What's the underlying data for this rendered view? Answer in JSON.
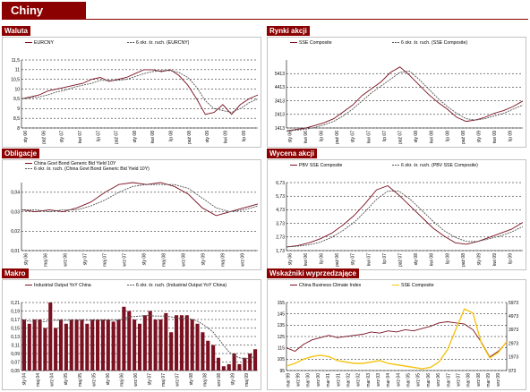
{
  "page": {
    "title": "Chiny",
    "accent": "#8b0000",
    "series_colors": {
      "primary": "#7a1020",
      "ma": "#555555",
      "secondary": "#f5c518"
    }
  },
  "chart_data": [
    {
      "id": "waluta",
      "type": "line",
      "title": "Waluta",
      "legend": [
        "EURCNY",
        "6 okr. śr. ruch. (EURCNY)"
      ],
      "ylim": [
        8,
        11.5
      ],
      "yticks": [
        "11,5",
        "11",
        "10,5",
        "10",
        "9,5",
        "9",
        "8,5",
        "8"
      ],
      "xticks": [
        "sty 06",
        "paź 06",
        "sty 07",
        "kwi 07",
        "lip 07",
        "paź 07",
        "sty 08",
        "kwi 08",
        "lip 08",
        "paź 08",
        "sty 09",
        "kwi 09",
        "lip 09"
      ],
      "series": [
        {
          "name": "EURCNY",
          "values": [
            9.5,
            9.6,
            9.7,
            9.9,
            10.0,
            10.1,
            10.2,
            10.3,
            10.5,
            10.6,
            10.4,
            10.5,
            10.6,
            10.8,
            11.0,
            11.0,
            10.9,
            11.0,
            10.7,
            10.2,
            9.5,
            8.7,
            8.8,
            9.2,
            8.7,
            9.2,
            9.5,
            9.7
          ]
        },
        {
          "name": "6 okr. śr. ruch. (EURCNY)",
          "values": [
            9.5,
            9.55,
            9.6,
            9.7,
            9.85,
            9.95,
            10.1,
            10.2,
            10.3,
            10.45,
            10.45,
            10.45,
            10.5,
            10.65,
            10.8,
            10.9,
            10.95,
            10.95,
            10.85,
            10.6,
            10.1,
            9.4,
            9.0,
            8.9,
            8.8,
            9.0,
            9.3,
            9.5
          ]
        }
      ]
    },
    {
      "id": "rynki-akcji",
      "type": "line",
      "title": "Rynki akcji",
      "legend": [
        "SSE Composite",
        "6 okr. śr. ruch. (SSE Composite)"
      ],
      "ylim": [
        1413,
        6413
      ],
      "yticks": [
        "5413",
        "4413",
        "3413",
        "2413",
        "1413"
      ],
      "xticks": [
        "sty 06",
        "kwi 06",
        "lip 06",
        "paź 06",
        "sty 07",
        "kwi 07",
        "lip 07",
        "paź 07",
        "sty 08",
        "kwi 08",
        "lip 08",
        "paź 08",
        "sty 09",
        "kwi 09",
        "lip 09"
      ],
      "series": [
        {
          "name": "SSE Composite",
          "values": [
            1200,
            1300,
            1400,
            1600,
            1800,
            2100,
            2600,
            3100,
            3800,
            4300,
            4800,
            5500,
            5900,
            5300,
            4600,
            3900,
            3300,
            2800,
            2200,
            1900,
            2000,
            2200,
            2500,
            2700,
            3000,
            3400
          ]
        },
        {
          "name": "6 okr. śr. ruch. (SSE Composite)",
          "values": [
            1200,
            1250,
            1320,
            1450,
            1650,
            1900,
            2300,
            2800,
            3400,
            4000,
            4500,
            5000,
            5500,
            5600,
            5000,
            4300,
            3600,
            3000,
            2500,
            2100,
            2000,
            2100,
            2300,
            2500,
            2800,
            3100
          ]
        }
      ]
    },
    {
      "id": "obligacje",
      "type": "line",
      "title": "Obligacje",
      "legend": [
        "China Govt Bond Generic Bid Yield 10Y",
        "6 okr. śr. ruch. (China Govt Bond Generic Bid Yield 10Y)"
      ],
      "ylim": [
        0.01,
        0.045
      ],
      "yticks": [
        "0,04",
        "0,03",
        "0,02",
        "0,01"
      ],
      "xticks": [
        "sty 06",
        "maj 06",
        "wrz 06",
        "sty 07",
        "maj 07",
        "wrz 07",
        "sty 08",
        "maj 08",
        "wrz 08",
        "sty 09",
        "maj 09",
        "wrz 09"
      ],
      "series": [
        {
          "name": "China Govt Bond Generic Bid Yield 10Y",
          "values": [
            0.031,
            0.03,
            0.031,
            0.03,
            0.032,
            0.035,
            0.04,
            0.044,
            0.045,
            0.044,
            0.045,
            0.043,
            0.039,
            0.032,
            0.028,
            0.03,
            0.032,
            0.034
          ]
        },
        {
          "name": "6 okr. śr. ruch. (China Govt Bond Generic Bid Yield 10Y)",
          "values": [
            0.031,
            0.031,
            0.03,
            0.031,
            0.031,
            0.033,
            0.036,
            0.04,
            0.043,
            0.044,
            0.044,
            0.044,
            0.042,
            0.037,
            0.032,
            0.03,
            0.031,
            0.033
          ]
        }
      ]
    },
    {
      "id": "wycena-akcji",
      "type": "line",
      "title": "Wycena akcji",
      "legend": [
        "PBV SSE Composite",
        "6 okr. śr. ruch. (PBV SSE Composite)"
      ],
      "ylim": [
        1.73,
        6.73
      ],
      "yticks": [
        "6,73",
        "5,73",
        "4,73",
        "3,73",
        "2,73",
        "1,73"
      ],
      "xticks": [
        "sty 06",
        "kwi 06",
        "lip 06",
        "paź 06",
        "sty 07",
        "kwi 07",
        "lip 07",
        "paź 07",
        "sty 08",
        "kwi 08",
        "lip 08",
        "paź 08",
        "sty 09",
        "kwi 09",
        "lip 09"
      ],
      "series": [
        {
          "name": "PBV SSE Composite",
          "values": [
            2.0,
            2.1,
            2.3,
            2.6,
            3.0,
            3.6,
            4.3,
            5.2,
            6.2,
            6.5,
            5.8,
            5.0,
            4.2,
            3.4,
            2.8,
            2.3,
            2.2,
            2.4,
            2.7,
            3.0,
            3.3,
            3.8
          ]
        },
        {
          "name": "6 okr. śr. ruch. (PBV SSE Composite)",
          "values": [
            2.0,
            2.05,
            2.15,
            2.35,
            2.7,
            3.2,
            3.8,
            4.6,
            5.5,
            6.1,
            6.1,
            5.5,
            4.7,
            3.9,
            3.2,
            2.7,
            2.4,
            2.4,
            2.6,
            2.8,
            3.1,
            3.5
          ]
        }
      ]
    },
    {
      "id": "makro",
      "type": "bar",
      "title": "Makro",
      "legend": [
        "Industrial Output YoY China",
        "6 okr. śr. ruch. (Industrial Output YoY China)"
      ],
      "ylim": [
        0.05,
        0.21
      ],
      "yticks": [
        "0,21",
        "0,19",
        "0,17",
        "0,15",
        "0,13",
        "0,11",
        "0,09",
        "0,07",
        "0,05"
      ],
      "xticks": [
        "sty 04",
        "maj 04",
        "wrz 04",
        "sty 05",
        "maj 05",
        "wrz 05",
        "sty 06",
        "maj 06",
        "wrz 06",
        "sty 07",
        "maj 07",
        "wrz 07",
        "sty 08",
        "maj 08",
        "wrz 08",
        "sty 09",
        "maj 09"
      ],
      "series": [
        {
          "name": "Industrial Output YoY China",
          "values": [
            0.17,
            0.16,
            0.17,
            0.17,
            0.15,
            0.21,
            0.15,
            0.17,
            0.16,
            0.17,
            0.17,
            0.17,
            0.16,
            0.17,
            0.17,
            0.17,
            0.17,
            0.165,
            0.17,
            0.2,
            0.19,
            0.17,
            0.16,
            0.18,
            0.19,
            0.17,
            0.17,
            0.185,
            0.14,
            0.18,
            0.18,
            0.18,
            0.17,
            0.16,
            0.14,
            0.12,
            0.11,
            0.08,
            0.06,
            0.065,
            0.09,
            0.065,
            0.08,
            0.09,
            0.1
          ]
        },
        {
          "name": "6 okr. śr. ruch. (Industrial Output YoY China)",
          "values": [
            0.168,
            0.166,
            0.166,
            0.165,
            0.165,
            0.168,
            0.168,
            0.167,
            0.168,
            0.168,
            0.168,
            0.168,
            0.168,
            0.168,
            0.168,
            0.168,
            0.168,
            0.168,
            0.168,
            0.172,
            0.176,
            0.177,
            0.178,
            0.179,
            0.179,
            0.178,
            0.178,
            0.178,
            0.176,
            0.174,
            0.173,
            0.173,
            0.171,
            0.166,
            0.159,
            0.15,
            0.14,
            0.125,
            0.109,
            0.094,
            0.085,
            0.08,
            0.078,
            0.079,
            0.083
          ]
        }
      ]
    },
    {
      "id": "wskazniki",
      "type": "line",
      "title": "Wskaźniki wyprzedzające",
      "legend": [
        "China Business Climate Index",
        "SSE Composite"
      ],
      "ylim": [
        95,
        155
      ],
      "ylim_right": [
        973,
        5973
      ],
      "yticks": [
        "155",
        "145",
        "135",
        "125",
        "115",
        "105",
        "95"
      ],
      "yticks_right": [
        "5973",
        "4973",
        "3973",
        "2973",
        "1973",
        "973"
      ],
      "xticks": [
        "mar 99",
        "wrz 99",
        "mar 00",
        "wrz 00",
        "mar 01",
        "wrz 01",
        "mar 02",
        "wrz 02",
        "mar 03",
        "wrz 03",
        "mar 04",
        "wrz 04",
        "mar 05",
        "wrz 05",
        "mar 06",
        "wrz 06",
        "mar 07",
        "wrz 07",
        "mar 08",
        "wrz 08",
        "mar 09",
        "wrz 09"
      ],
      "series": [
        {
          "name": "China Business Climate Index",
          "axis": "left",
          "values": [
            115,
            112,
            118,
            122,
            124,
            126,
            124,
            125,
            126,
            127,
            129,
            128,
            130,
            129,
            131,
            130,
            132,
            134,
            137,
            138,
            137,
            136,
            131,
            120,
            107,
            112,
            120
          ]
        },
        {
          "name": "SSE Composite",
          "axis": "right",
          "values": [
            1300,
            1500,
            1800,
            2000,
            2100,
            2000,
            1700,
            1600,
            1500,
            1500,
            1600,
            1700,
            1500,
            1400,
            1300,
            1200,
            1100,
            1200,
            1600,
            2500,
            4000,
            5500,
            5200,
            3000,
            1900,
            2300,
            3100
          ]
        }
      ]
    }
  ]
}
